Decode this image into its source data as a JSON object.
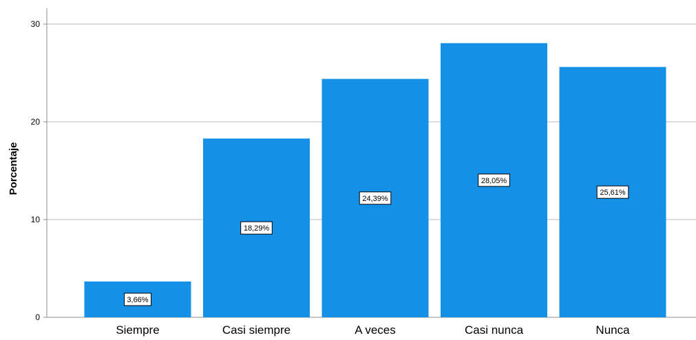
{
  "chart_data": {
    "type": "bar",
    "title": "",
    "xlabel": "",
    "ylabel": "Porcentaje",
    "categories": [
      "Siempre",
      "Casi siempre",
      "A veces",
      "Casi nunca",
      "Nunca"
    ],
    "values": [
      3.66,
      18.29,
      24.39,
      28.05,
      25.61
    ],
    "data_labels": [
      "3,66%",
      "18,29%",
      "24,39%",
      "28,05%",
      "25,61%"
    ],
    "yticks": [
      0,
      10,
      20,
      30
    ],
    "ylim": [
      0,
      30.5
    ],
    "grid": true,
    "bar_color": "#1490e6",
    "gridline_color": "#b8b8b8",
    "legend": "none"
  }
}
